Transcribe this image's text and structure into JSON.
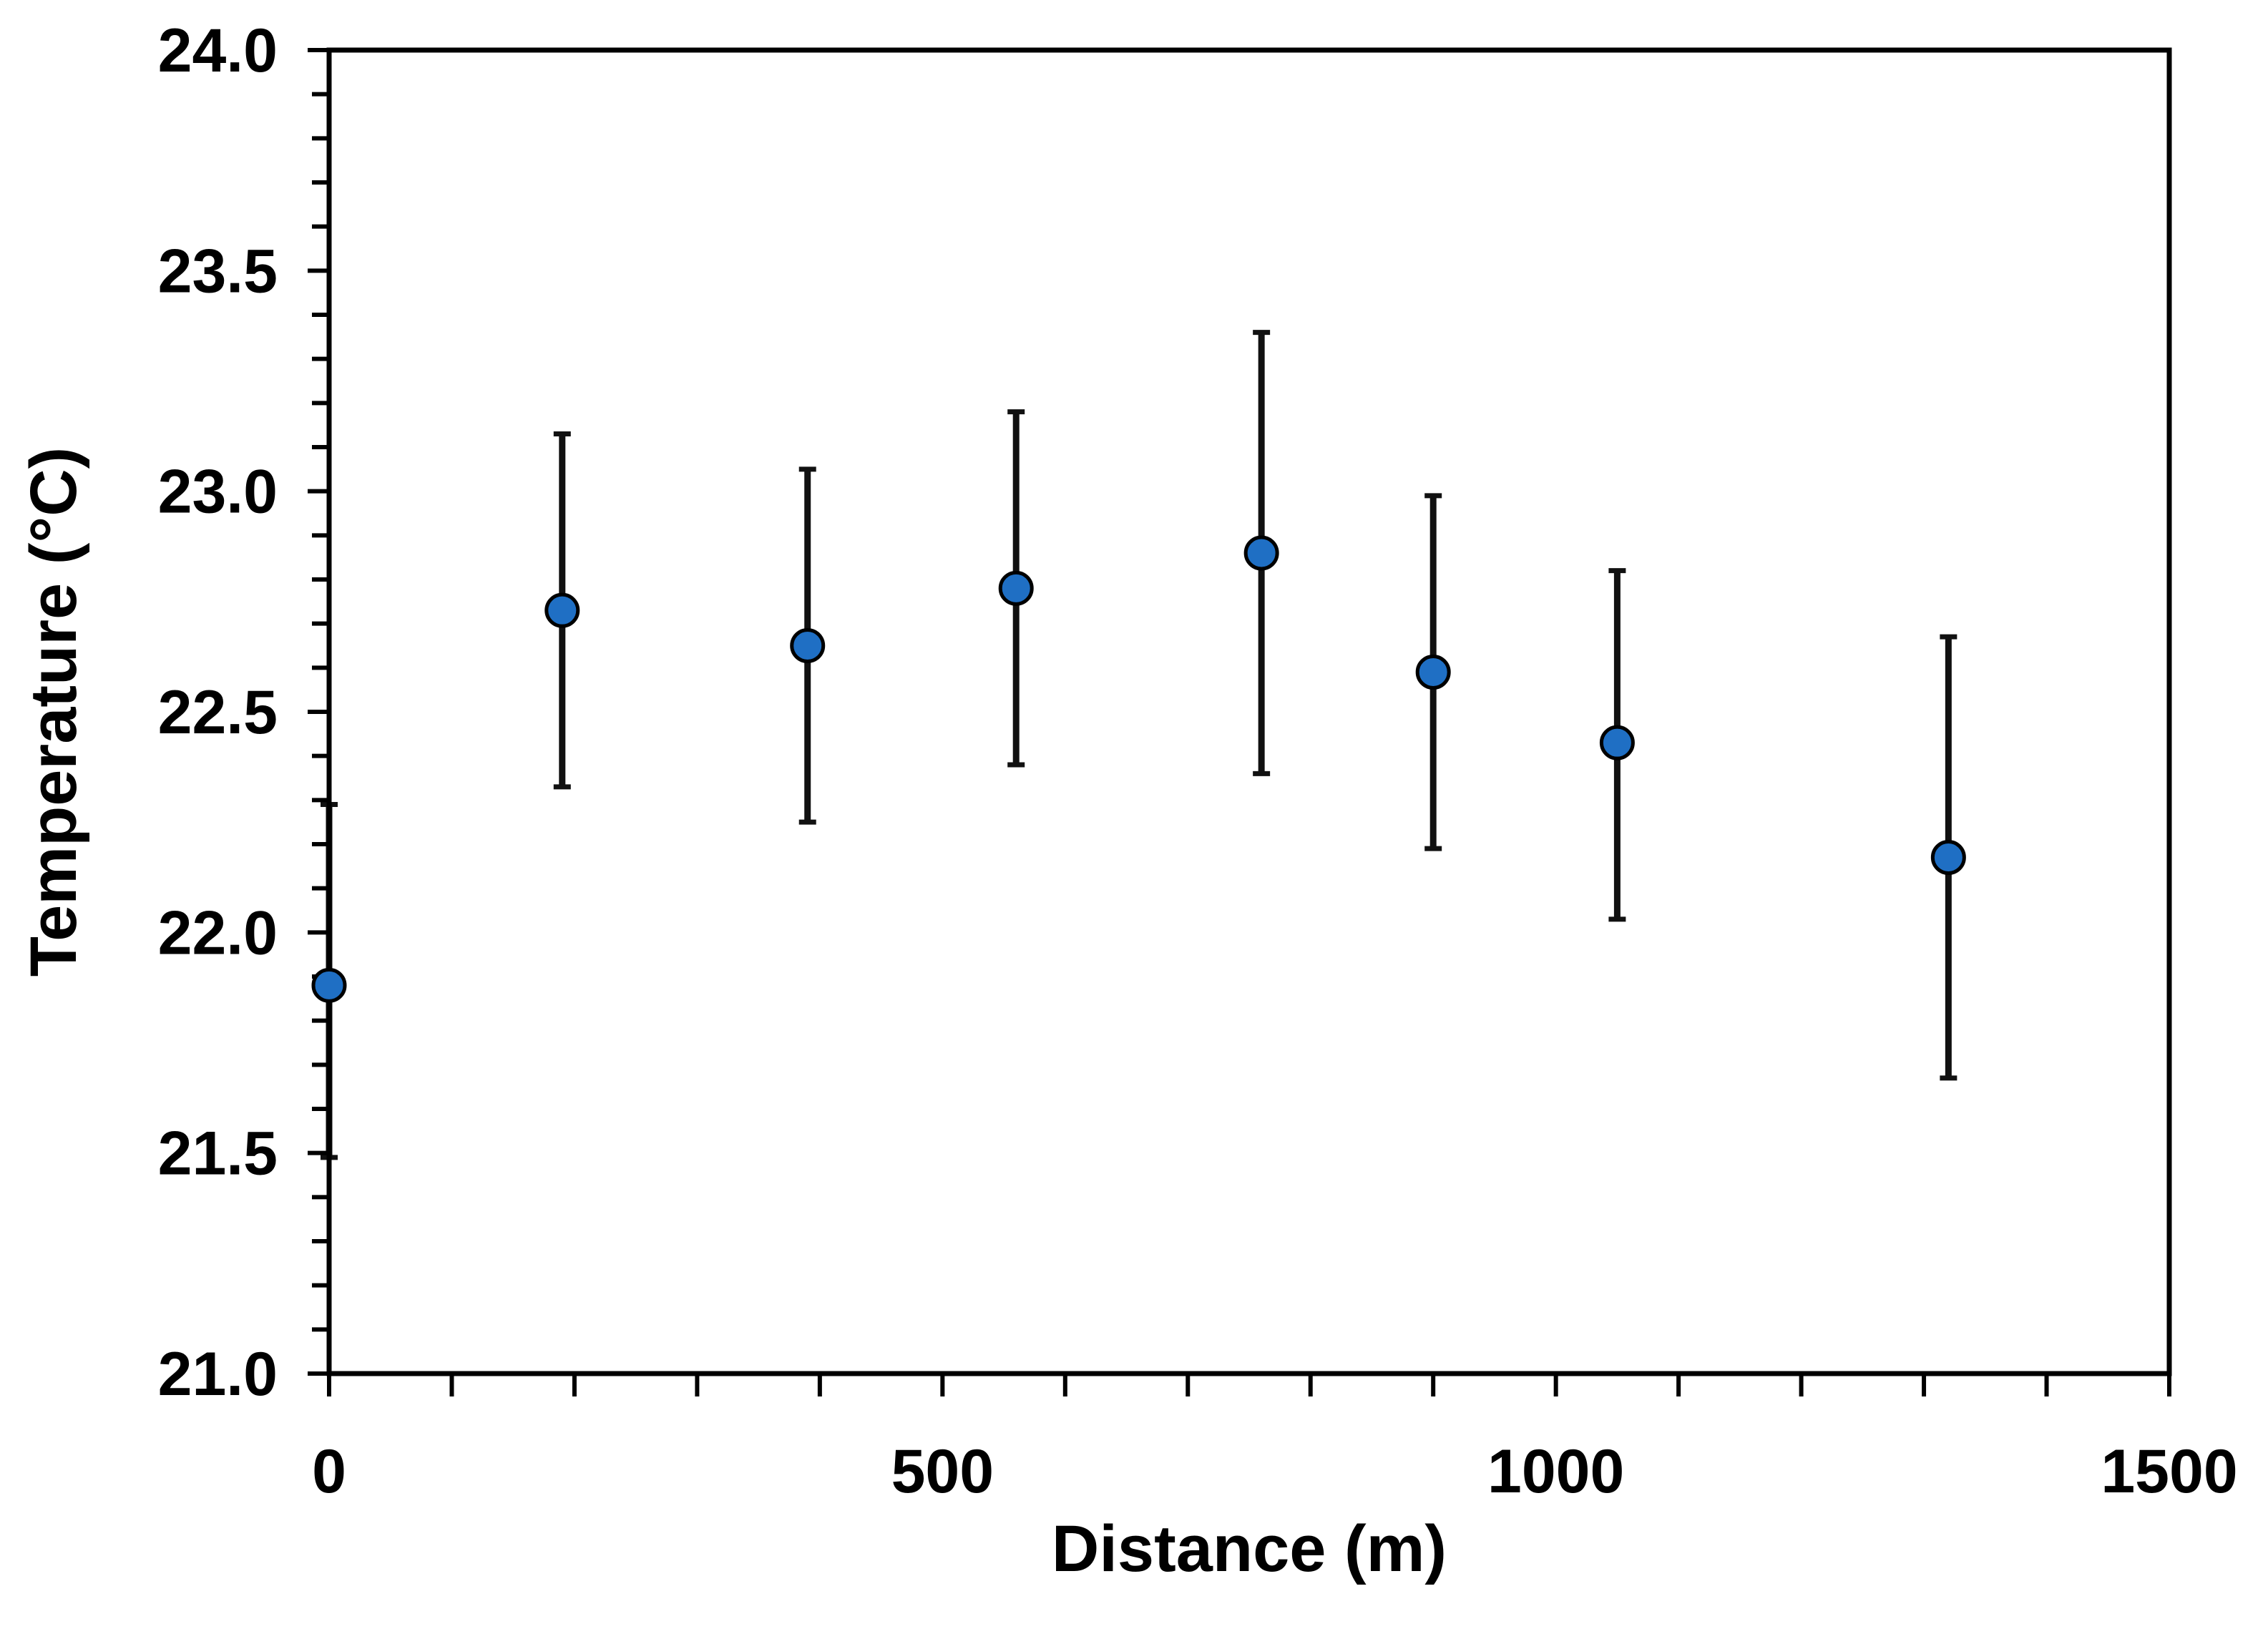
{
  "chart_data": {
    "type": "scatter",
    "title": "",
    "xlabel": "Distance  (m)",
    "ylabel": "Temperature  (°C)",
    "xlim": [
      0,
      1500
    ],
    "ylim": [
      21.0,
      24.0
    ],
    "x_ticks": [
      0,
      500,
      1000,
      1500
    ],
    "x_tick_labels": [
      "0",
      "500",
      "1000",
      "1500"
    ],
    "x_minor_step": 100,
    "y_ticks": [
      21.0,
      21.5,
      22.0,
      22.5,
      23.0,
      23.5,
      24.0
    ],
    "y_tick_labels": [
      "21.0",
      "21.5",
      "22.0",
      "22.5",
      "23.0",
      "23.5",
      "24.0"
    ],
    "y_minor_step": 0.1,
    "grid": false,
    "legend": "none",
    "series": [
      {
        "marker": "circle",
        "color": "#1f6fc4",
        "edge_color": "#000000",
        "points": [
          {
            "x": 0,
            "y": 21.88,
            "err_low": 21.49,
            "err_high": 22.29
          },
          {
            "x": 190,
            "y": 22.73,
            "err_low": 22.33,
            "err_high": 23.13
          },
          {
            "x": 390,
            "y": 22.65,
            "err_low": 22.25,
            "err_high": 23.05
          },
          {
            "x": 560,
            "y": 22.78,
            "err_low": 22.38,
            "err_high": 23.18
          },
          {
            "x": 760,
            "y": 22.86,
            "err_low": 22.36,
            "err_high": 23.36
          },
          {
            "x": 900,
            "y": 22.59,
            "err_low": 22.19,
            "err_high": 22.99
          },
          {
            "x": 1050,
            "y": 22.43,
            "err_low": 22.03,
            "err_high": 22.82
          },
          {
            "x": 1320,
            "y": 22.17,
            "err_low": 21.67,
            "err_high": 22.67
          }
        ]
      }
    ]
  }
}
